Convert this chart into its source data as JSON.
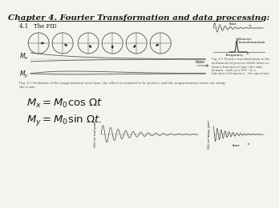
{
  "title": "Chapter 4. Fourier Transformation and data processing:",
  "bg_color": "#f5f3ee",
  "text_color": "#1a1a1a",
  "dark_color": "#2a2a2a",
  "gray_color": "#555555",
  "light_gray": "#888888",
  "section_label": "4.1   The FID",
  "eq1": "$M_x = M_0\\cos\\,\\Omega t$",
  "eq2": "$M_y = M_0\\sin\\,\\Omega t.$",
  "fig_caption": "Fig. 4.1 Evolution of the magnetization over time; the offset is assumed to be positive and the magnetization starts out along\nthe x axis.",
  "fig_caption_right": "Fig. 4.1 Fourier transformation is the\nmathematical process which takes us\nfrom a function of time (the time\ndomain - such as a FID - to a\nfunction of frequency - the spectrum.",
  "label_mx": "$M_x$",
  "label_my": "$M_y$",
  "label_time": "time",
  "label_frequency": "frequency",
  "label_fourier": "Fourier\ntransformation",
  "label_time_top": "time",
  "label_sft_real": "S(t) or real part",
  "label_sft_imag": "S(t) or imag. part",
  "label_time_bottom": "time"
}
